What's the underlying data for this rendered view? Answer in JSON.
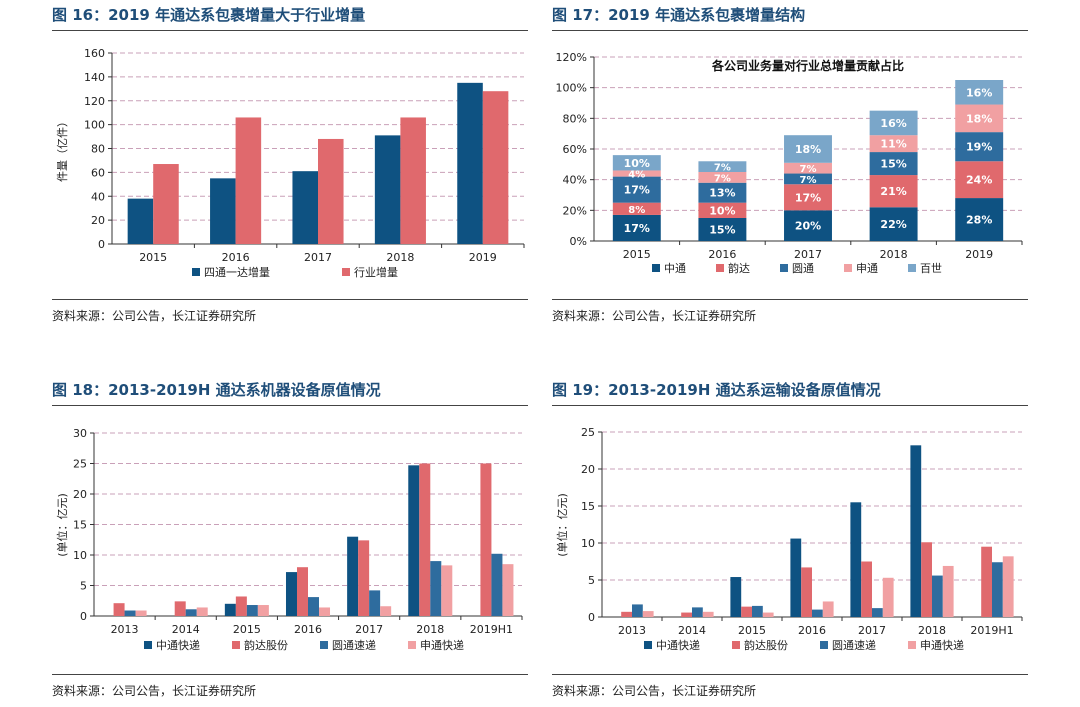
{
  "colors": {
    "dark_blue": "#0e5282",
    "red": "#e0696d",
    "mid_blue": "#2e6c9e",
    "pink": "#f1a0a2",
    "light_blue": "#7aa6c9",
    "title": "#1f4e79"
  },
  "panels": [
    {
      "title": "图 16：2019 年通达系包裹增量大于行业增量",
      "source": "资料来源：公司公告，长江证券研究所"
    },
    {
      "title": "图 17：2019 年通达系包裹增量结构",
      "source": "资料来源：公司公告，长江证券研究所"
    },
    {
      "title": "图 18：2013-2019H 通达系机器设备原值情况",
      "source": "资料来源：公司公告，长江证券研究所"
    },
    {
      "title": "图 19：2013-2019H 通达系运输设备原值情况",
      "source": "资料来源：公司公告，长江证券研究所"
    }
  ],
  "chart_data": [
    {
      "type": "bar",
      "title": "",
      "ylabel": "件量（亿件）",
      "xlabel": "",
      "ylim": [
        0,
        160
      ],
      "yticks": [
        "0",
        "20",
        "40",
        "60",
        "80",
        "100",
        "120",
        "140",
        "160"
      ],
      "categories": [
        "2015",
        "2016",
        "2017",
        "2018",
        "2019"
      ],
      "series": [
        {
          "name": "四通一达增量",
          "color": "#0e5282",
          "values": [
            38,
            55,
            61,
            91,
            135
          ]
        },
        {
          "name": "行业增量",
          "color": "#e0696d",
          "values": [
            67,
            106,
            88,
            106,
            128
          ]
        }
      ],
      "legend": "bottom"
    },
    {
      "type": "bar",
      "stacked": true,
      "title": "各公司业务量对行业总增量贡献占比",
      "ylabel": "",
      "xlabel": "",
      "ylim": [
        0,
        120
      ],
      "yticks": [
        "0%",
        "20%",
        "40%",
        "60%",
        "80%",
        "100%",
        "120%"
      ],
      "categories": [
        "2015",
        "2016",
        "2017",
        "2018",
        "2019"
      ],
      "series": [
        {
          "name": "中通",
          "color": "#0e5282",
          "values": [
            17,
            15,
            20,
            22,
            28
          ],
          "labels": [
            "17%",
            "15%",
            "20%",
            "22%",
            "28%"
          ]
        },
        {
          "name": "韵达",
          "color": "#e0696d",
          "values": [
            8,
            10,
            17,
            21,
            24
          ],
          "labels": [
            "8%",
            "10%",
            "17%",
            "21%",
            "24%"
          ]
        },
        {
          "name": "圆通",
          "color": "#2e6c9e",
          "values": [
            17,
            13,
            7,
            15,
            19
          ],
          "labels": [
            "17%",
            "13%",
            "7%",
            "15%",
            "19%"
          ]
        },
        {
          "name": "申通",
          "color": "#f1a0a2",
          "values": [
            4,
            7,
            7,
            11,
            18
          ],
          "labels": [
            "4%",
            "7%",
            "7%",
            "11%",
            "18%"
          ]
        },
        {
          "name": "百世",
          "color": "#7aa6c9",
          "values": [
            10,
            7,
            18,
            16,
            16
          ],
          "labels": [
            "10%",
            "7%",
            "18%",
            "16%",
            "16%"
          ]
        }
      ],
      "legend": "bottom"
    },
    {
      "type": "bar",
      "title": "",
      "ylabel": "(单位：亿元)",
      "xlabel": "",
      "ylim": [
        0,
        30
      ],
      "yticks": [
        "0",
        "5",
        "10",
        "15",
        "20",
        "25",
        "30"
      ],
      "categories": [
        "2013",
        "2014",
        "2015",
        "2016",
        "2017",
        "2018",
        "2019H1"
      ],
      "series": [
        {
          "name": "中通快递",
          "color": "#0e5282",
          "values": [
            0,
            0,
            2.0,
            7.2,
            13.0,
            24.7,
            0
          ]
        },
        {
          "name": "韵达股份",
          "color": "#e0696d",
          "values": [
            2.1,
            2.4,
            3.2,
            8.0,
            12.4,
            25.0,
            25.0
          ]
        },
        {
          "name": "圆通速递",
          "color": "#2e6c9e",
          "values": [
            0.9,
            1.1,
            1.8,
            3.1,
            4.2,
            9.0,
            10.2
          ]
        },
        {
          "name": "申通快递",
          "color": "#f1a0a2",
          "values": [
            0.9,
            1.4,
            1.8,
            1.4,
            1.6,
            8.3,
            8.5
          ]
        }
      ],
      "legend": "bottom"
    },
    {
      "type": "bar",
      "title": "",
      "ylabel": "(单位：亿元)",
      "xlabel": "",
      "ylim": [
        0,
        25
      ],
      "yticks": [
        "0",
        "5",
        "10",
        "15",
        "20",
        "25"
      ],
      "categories": [
        "2013",
        "2014",
        "2015",
        "2016",
        "2017",
        "2018",
        "2019H1"
      ],
      "series": [
        {
          "name": "中通快递",
          "color": "#0e5282",
          "values": [
            0,
            0,
            5.4,
            10.6,
            15.5,
            23.2,
            0
          ]
        },
        {
          "name": "韵达股份",
          "color": "#e0696d",
          "values": [
            0.7,
            0.6,
            1.4,
            6.7,
            7.5,
            10.1,
            9.5
          ]
        },
        {
          "name": "圆通速递",
          "color": "#2e6c9e",
          "values": [
            1.7,
            1.3,
            1.5,
            1.0,
            1.2,
            5.6,
            7.4
          ]
        },
        {
          "name": "申通快递",
          "color": "#f1a0a2",
          "values": [
            0.8,
            0.7,
            0.6,
            2.1,
            5.3,
            6.9,
            8.2
          ]
        }
      ],
      "legend": "bottom"
    }
  ]
}
